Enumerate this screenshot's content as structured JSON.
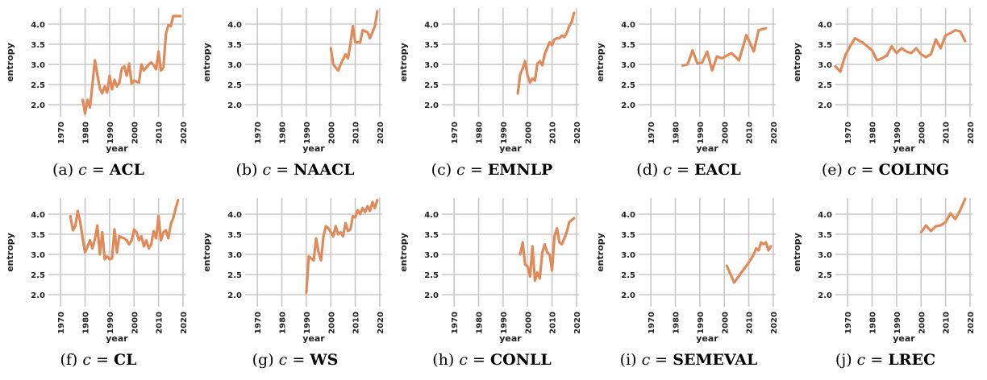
{
  "y_axis_label": "entropy",
  "x_axis_label": "year",
  "caption_prefix": "c =",
  "line_color": "#E08A5A",
  "chart_data": [
    {
      "type": "line",
      "caption_id": "(a)",
      "venue": "ACL",
      "xlabel": "year",
      "ylabel": "entropy",
      "xlim": [
        1965,
        2021
      ],
      "ylim": [
        1.7,
        4.4
      ],
      "x_ticks": [
        1970,
        1980,
        1990,
        2000,
        2010,
        2020
      ],
      "y_ticks": [
        "2.0",
        "2.5",
        "3.0",
        "3.5",
        "4.0"
      ],
      "x": [
        1979,
        1980,
        1981,
        1982,
        1983,
        1984,
        1985,
        1986,
        1987,
        1988,
        1989,
        1990,
        1991,
        1992,
        1993,
        1994,
        1995,
        1996,
        1997,
        1998,
        1999,
        2000,
        2001,
        2002,
        2003,
        2004,
        2005,
        2006,
        2007,
        2008,
        2009,
        2010,
        2011,
        2012,
        2013,
        2014,
        2015,
        2016,
        2017,
        2018,
        2019
      ],
      "y": [
        2.12,
        1.78,
        2.12,
        1.93,
        2.5,
        3.1,
        2.75,
        2.4,
        2.28,
        2.45,
        2.3,
        2.72,
        2.38,
        2.62,
        2.45,
        2.55,
        2.9,
        2.95,
        2.72,
        3.02,
        2.52,
        2.6,
        2.57,
        2.55,
        3.0,
        2.85,
        2.92,
        3.0,
        3.05,
        2.98,
        2.88,
        3.32,
        2.85,
        2.92,
        3.75,
        3.98,
        3.95,
        4.2,
        4.2,
        4.2,
        4.2
      ]
    },
    {
      "type": "line",
      "caption_id": "(b)",
      "venue": "NAACL",
      "xlabel": "year",
      "ylabel": "entropy",
      "xlim": [
        1965,
        2021
      ],
      "ylim": [
        1.7,
        4.4
      ],
      "x_ticks": [
        1970,
        1980,
        1990,
        2000,
        2010,
        2020
      ],
      "y_ticks": [
        "2.0",
        "2.5",
        "3.0",
        "3.5",
        "4.0"
      ],
      "x": [
        2000,
        2001,
        2003,
        2004,
        2006,
        2007,
        2008,
        2009,
        2010,
        2012,
        2013,
        2015,
        2016,
        2018,
        2019
      ],
      "y": [
        3.4,
        3.0,
        2.85,
        3.0,
        3.25,
        3.15,
        3.5,
        3.95,
        3.55,
        3.55,
        3.85,
        3.8,
        3.65,
        3.95,
        4.32
      ]
    },
    {
      "type": "line",
      "caption_id": "(c)",
      "venue": "EMNLP",
      "xlabel": "year",
      "ylabel": "entropy",
      "xlim": [
        1965,
        2021
      ],
      "ylim": [
        1.7,
        4.4
      ],
      "x_ticks": [
        1970,
        1980,
        1990,
        2000,
        2010,
        2020
      ],
      "y_ticks": [
        "2.0",
        "2.5",
        "3.0",
        "3.5",
        "4.0"
      ],
      "x": [
        1996,
        1997,
        1998,
        1999,
        2000,
        2001,
        2002,
        2003,
        2004,
        2005,
        2006,
        2007,
        2008,
        2009,
        2010,
        2011,
        2012,
        2013,
        2014,
        2015,
        2016,
        2017,
        2018,
        2019
      ],
      "y": [
        2.28,
        2.75,
        2.9,
        3.08,
        2.72,
        2.55,
        2.65,
        2.6,
        3.02,
        3.08,
        2.98,
        3.25,
        3.4,
        3.55,
        3.48,
        3.62,
        3.65,
        3.65,
        3.72,
        3.68,
        3.78,
        3.95,
        4.05,
        4.28
      ]
    },
    {
      "type": "line",
      "caption_id": "(d)",
      "venue": "EACL",
      "xlabel": "year",
      "ylabel": "entropy",
      "xlim": [
        1965,
        2021
      ],
      "ylim": [
        1.7,
        4.4
      ],
      "x_ticks": [
        1970,
        1980,
        1990,
        2000,
        2010,
        2020
      ],
      "y_ticks": [
        "2.0",
        "2.5",
        "3.0",
        "3.5",
        "4.0"
      ],
      "x": [
        1983,
        1985,
        1987,
        1989,
        1991,
        1993,
        1995,
        1997,
        1999,
        2001,
        2003,
        2006,
        2009,
        2012,
        2014,
        2017
      ],
      "y": [
        2.97,
        3.0,
        3.35,
        3.02,
        3.05,
        3.32,
        2.85,
        3.2,
        3.15,
        3.22,
        3.28,
        3.1,
        3.73,
        3.32,
        3.85,
        3.9
      ]
    },
    {
      "type": "line",
      "caption_id": "(e)",
      "venue": "COLING",
      "xlabel": "year",
      "ylabel": "entropy",
      "xlim": [
        1965,
        2021
      ],
      "ylim": [
        1.7,
        4.4
      ],
      "x_ticks": [
        1970,
        1980,
        1990,
        2000,
        2010,
        2020
      ],
      "y_ticks": [
        "2.0",
        "2.5",
        "3.0",
        "3.5",
        "4.0"
      ],
      "x": [
        1965,
        1967,
        1969,
        1971,
        1973,
        1976,
        1978,
        1980,
        1982,
        1984,
        1986,
        1988,
        1990,
        1992,
        1994,
        1996,
        1998,
        2000,
        2002,
        2004,
        2006,
        2008,
        2010,
        2012,
        2014,
        2016,
        2018
      ],
      "y": [
        2.95,
        2.82,
        3.22,
        3.45,
        3.65,
        3.55,
        3.45,
        3.35,
        3.1,
        3.15,
        3.22,
        3.45,
        3.28,
        3.4,
        3.32,
        3.28,
        3.4,
        3.25,
        3.18,
        3.25,
        3.62,
        3.4,
        3.72,
        3.78,
        3.85,
        3.82,
        3.58
      ]
    },
    {
      "type": "line",
      "caption_id": "(f)",
      "venue": "CL",
      "xlabel": "year",
      "ylabel": "entropy",
      "xlim": [
        1965,
        2021
      ],
      "ylim": [
        1.7,
        4.4
      ],
      "x_ticks": [
        1970,
        1980,
        1990,
        2000,
        2010,
        2020
      ],
      "y_ticks": [
        "2.0",
        "2.5",
        "3.0",
        "3.5",
        "4.0"
      ],
      "x": [
        1974,
        1975,
        1976,
        1977,
        1978,
        1979,
        1980,
        1981,
        1982,
        1983,
        1984,
        1985,
        1986,
        1987,
        1988,
        1989,
        1990,
        1991,
        1992,
        1993,
        1994,
        1995,
        1996,
        1997,
        1998,
        1999,
        2000,
        2001,
        2002,
        2003,
        2004,
        2005,
        2006,
        2007,
        2008,
        2009,
        2010,
        2011,
        2012,
        2013,
        2014,
        2015,
        2016,
        2017,
        2018
      ],
      "y": [
        3.95,
        3.6,
        3.7,
        4.08,
        3.8,
        3.4,
        3.05,
        3.2,
        3.35,
        3.15,
        3.38,
        3.72,
        3.0,
        3.55,
        2.88,
        2.95,
        2.88,
        2.9,
        3.62,
        3.05,
        3.45,
        3.42,
        3.4,
        3.35,
        3.25,
        3.35,
        3.62,
        3.55,
        3.35,
        3.45,
        3.2,
        3.35,
        3.15,
        3.25,
        3.58,
        3.4,
        3.95,
        3.35,
        3.55,
        3.6,
        3.4,
        3.75,
        3.9,
        4.15,
        4.35
      ]
    },
    {
      "type": "line",
      "caption_id": "(g)",
      "venue": "WS",
      "xlabel": "year",
      "ylabel": "entropy",
      "xlim": [
        1965,
        2021
      ],
      "ylim": [
        1.7,
        4.4
      ],
      "x_ticks": [
        1970,
        1980,
        1990,
        2000,
        2010,
        2020
      ],
      "y_ticks": [
        "2.0",
        "2.5",
        "3.0",
        "3.5",
        "4.0"
      ],
      "x": [
        1990,
        1991,
        1992,
        1993,
        1994,
        1995,
        1996,
        1997,
        1998,
        1999,
        2000,
        2001,
        2002,
        2003,
        2004,
        2005,
        2006,
        2007,
        2008,
        2009,
        2010,
        2011,
        2012,
        2013,
        2014,
        2015,
        2016,
        2017,
        2018,
        2019
      ],
      "y": [
        2.05,
        2.95,
        2.9,
        2.85,
        3.4,
        3.05,
        2.85,
        3.45,
        3.7,
        3.65,
        3.55,
        3.45,
        3.7,
        3.5,
        3.55,
        3.45,
        3.78,
        3.58,
        3.62,
        3.95,
        3.92,
        4.1,
        4.0,
        4.15,
        4.05,
        4.2,
        4.08,
        4.3,
        4.15,
        4.35
      ]
    },
    {
      "type": "line",
      "caption_id": "(h)",
      "venue": "CONLL",
      "xlabel": "year",
      "ylabel": "entropy",
      "xlim": [
        1965,
        2021
      ],
      "ylim": [
        1.7,
        4.4
      ],
      "x_ticks": [
        1970,
        1980,
        1990,
        2000,
        2010,
        2020
      ],
      "y_ticks": [
        "2.0",
        "2.5",
        "3.0",
        "3.5",
        "4.0"
      ],
      "x": [
        1997,
        1998,
        1999,
        2000,
        2001,
        2002,
        2003,
        2004,
        2005,
        2006,
        2007,
        2008,
        2009,
        2010,
        2011,
        2012,
        2013,
        2014,
        2015,
        2016,
        2017,
        2018,
        2019
      ],
      "y": [
        3.0,
        3.3,
        2.75,
        2.7,
        2.45,
        3.2,
        2.35,
        2.55,
        2.4,
        3.05,
        3.25,
        3.05,
        3.0,
        2.6,
        3.45,
        3.65,
        3.3,
        3.25,
        3.4,
        3.55,
        3.8,
        3.85,
        3.9
      ]
    },
    {
      "type": "line",
      "caption_id": "(i)",
      "venue": "SEMEVAL",
      "xlabel": "year",
      "ylabel": "entropy",
      "xlim": [
        1965,
        2021
      ],
      "ylim": [
        1.7,
        4.4
      ],
      "x_ticks": [
        1970,
        1980,
        1990,
        2000,
        2010,
        2020
      ],
      "y_ticks": [
        "2.0",
        "2.5",
        "3.0",
        "3.5",
        "4.0"
      ],
      "x": [
        2001,
        2004,
        2007,
        2010,
        2012,
        2013,
        2014,
        2015,
        2016,
        2017,
        2018,
        2019
      ],
      "y": [
        2.72,
        2.3,
        2.55,
        2.8,
        3.0,
        3.15,
        3.1,
        3.3,
        3.25,
        3.3,
        3.1,
        3.2
      ]
    },
    {
      "type": "line",
      "caption_id": "(j)",
      "venue": "LREC",
      "xlabel": "year",
      "ylabel": "entropy",
      "xlim": [
        1965,
        2021
      ],
      "ylim": [
        1.7,
        4.4
      ],
      "x_ticks": [
        1970,
        1980,
        1990,
        2000,
        2010,
        2020
      ],
      "y_ticks": [
        "2.0",
        "2.5",
        "3.0",
        "3.5",
        "4.0"
      ],
      "x": [
        2000,
        2002,
        2004,
        2006,
        2008,
        2010,
        2012,
        2014,
        2016,
        2018
      ],
      "y": [
        3.55,
        3.72,
        3.58,
        3.7,
        3.72,
        3.8,
        4.02,
        3.88,
        4.1,
        4.38
      ]
    }
  ]
}
